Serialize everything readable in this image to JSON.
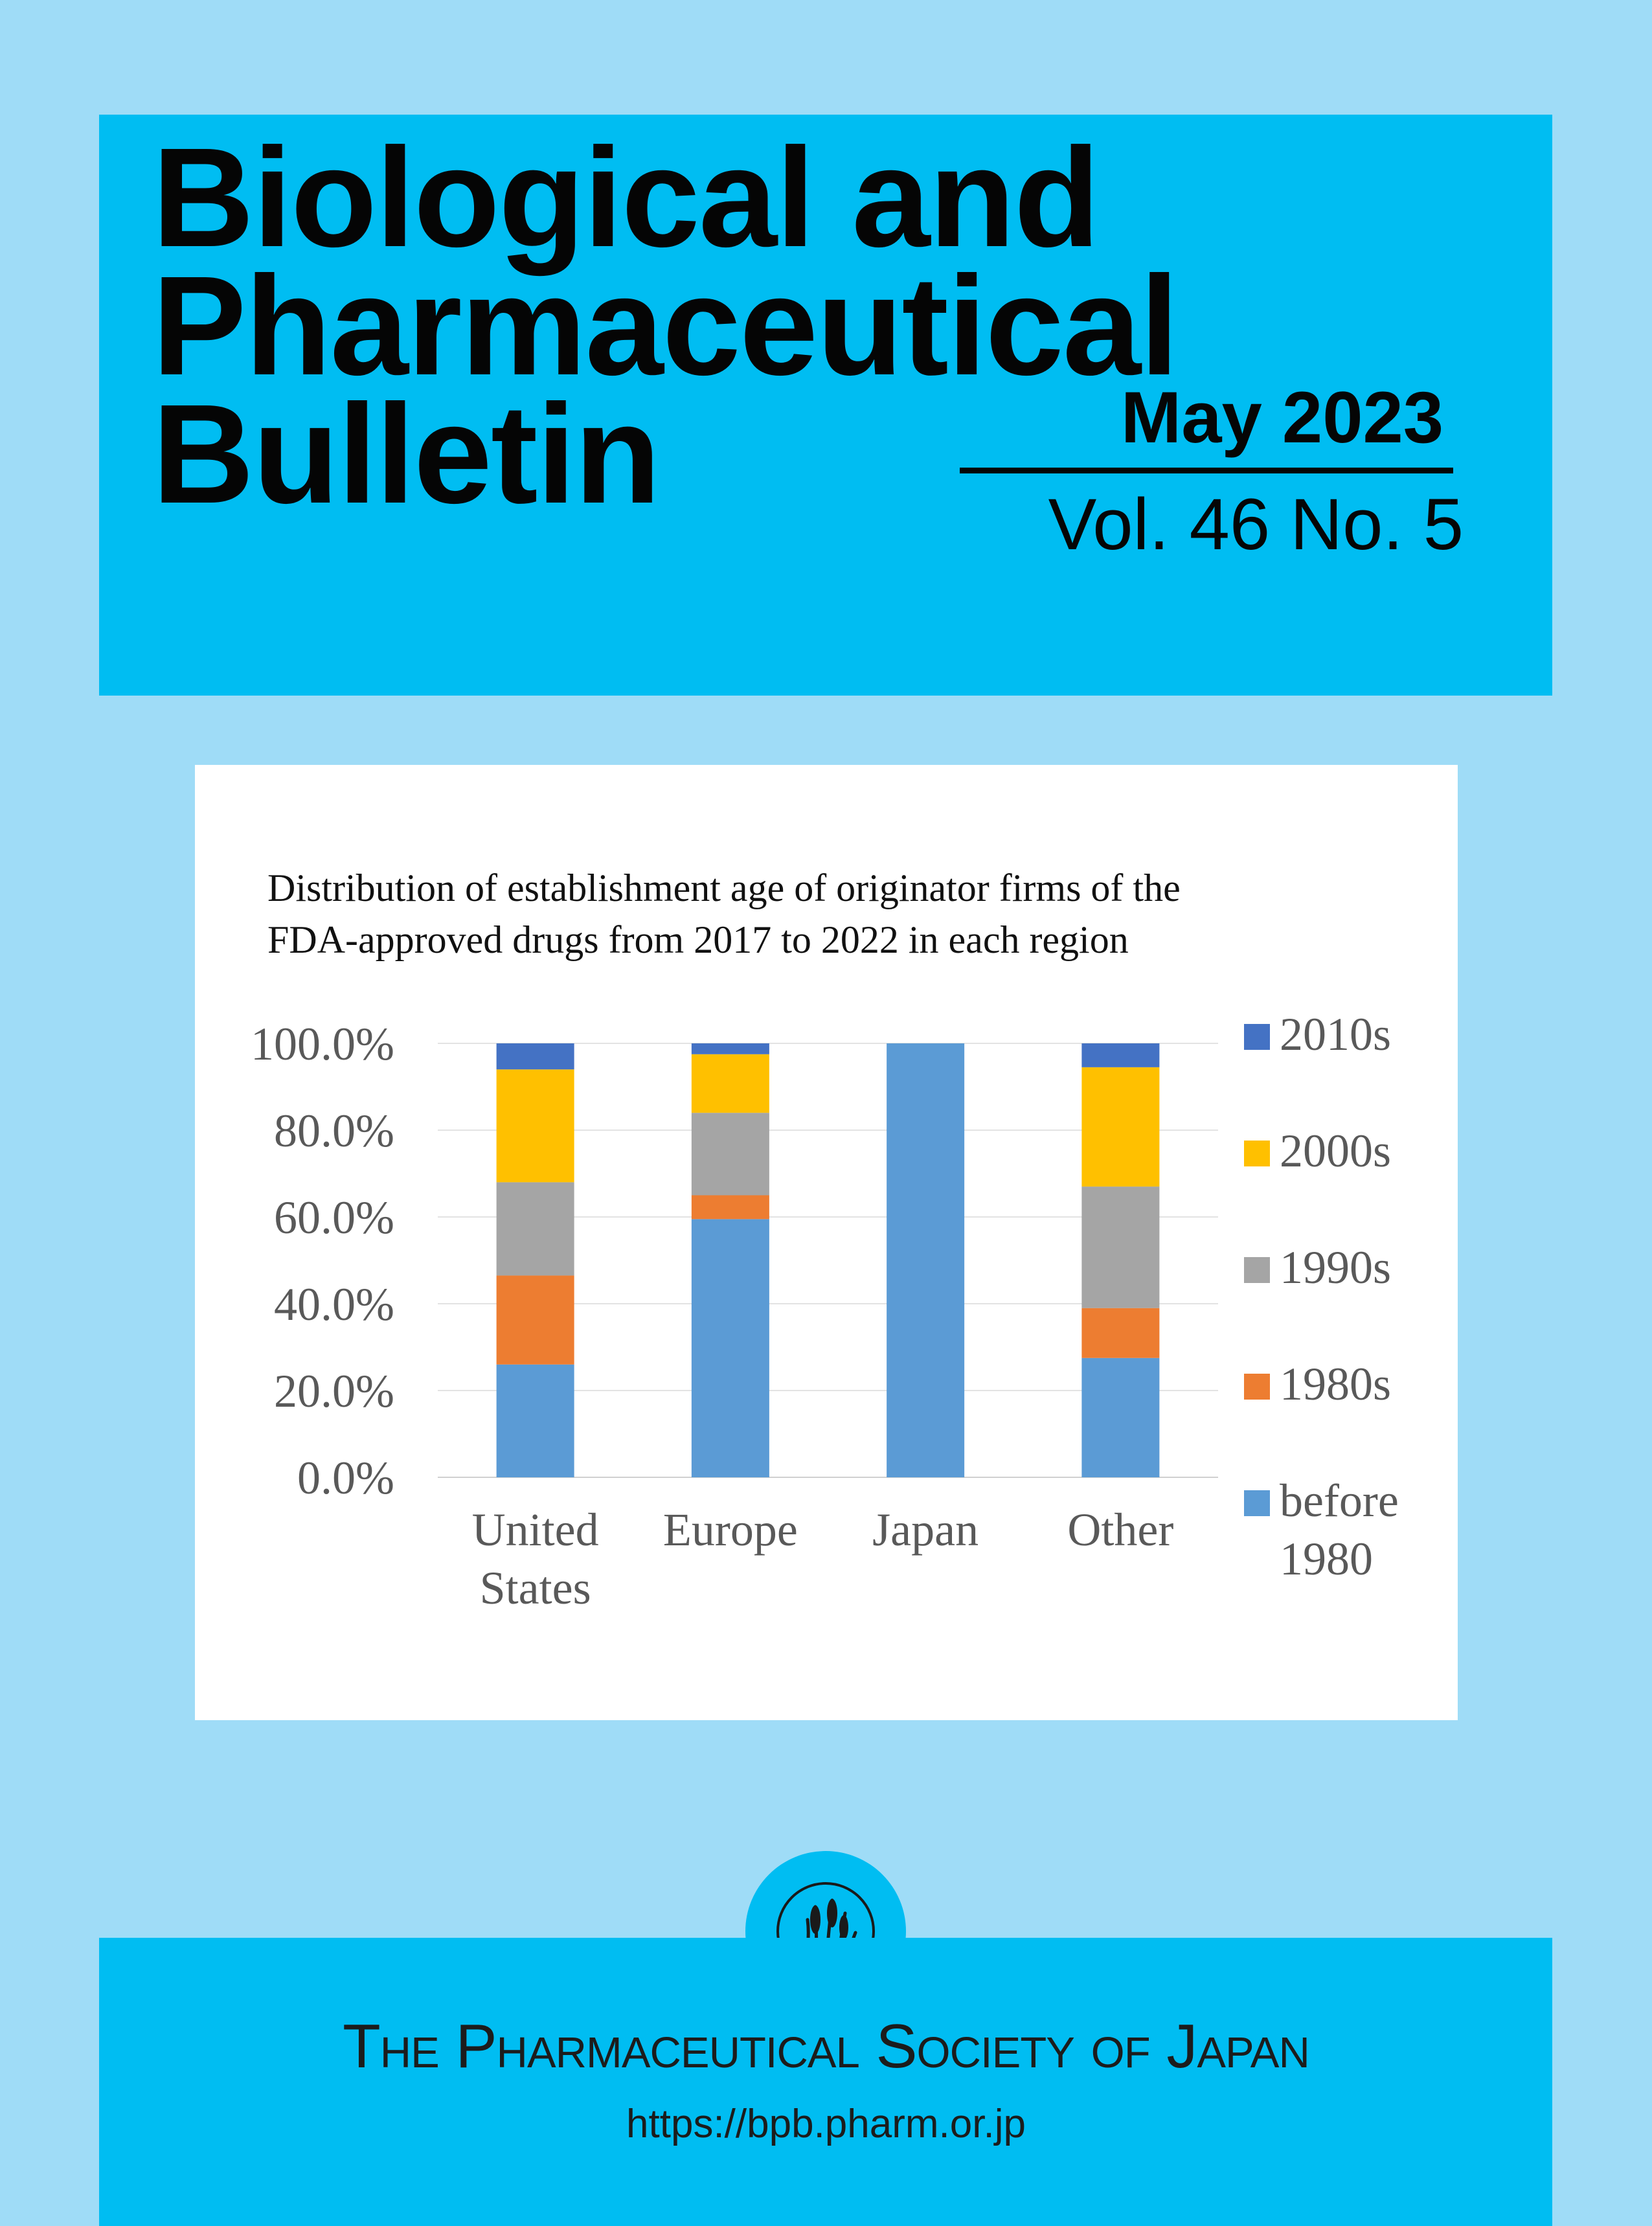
{
  "cover": {
    "title_lines": [
      "Biological and",
      "Pharmaceutical",
      "Bulletin"
    ],
    "issue_date": "May 2023",
    "volume": "Vol. 46 No. 5"
  },
  "publisher": {
    "name": "The Pharmaceutical Society of Japan",
    "url": "https://bpb.pharm.or.jp",
    "seal_icon": "reed-plant-seal-icon"
  },
  "colors": {
    "background": "#9fdcf7",
    "banner": "#00bdf2",
    "before_1980": "#5b9bd5",
    "1980s": "#ed7d31",
    "1990s": "#a5a5a5",
    "2000s": "#ffc000",
    "2010s": "#4472c4"
  },
  "chart_data": {
    "type": "bar",
    "stacked": true,
    "title_lines": [
      "Distribution of establishment age of originator firms of the",
      "FDA-approved drugs from 2017 to 2022 in each region"
    ],
    "categories": [
      [
        "United",
        "States"
      ],
      [
        "Europe"
      ],
      [
        "Japan"
      ],
      [
        "Other"
      ]
    ],
    "series": [
      {
        "name": "before 1980",
        "name_lines": [
          "before",
          "1980"
        ],
        "color": "#5b9bd5",
        "values": [
          26.0,
          59.5,
          100.0,
          27.5
        ]
      },
      {
        "name": "1980s",
        "name_lines": [
          "1980s"
        ],
        "color": "#ed7d31",
        "values": [
          20.5,
          5.5,
          0.0,
          11.5
        ]
      },
      {
        "name": "1990s",
        "name_lines": [
          "1990s"
        ],
        "color": "#a5a5a5",
        "values": [
          21.5,
          19.0,
          0.0,
          28.0
        ]
      },
      {
        "name": "2000s",
        "name_lines": [
          "2000s"
        ],
        "color": "#ffc000",
        "values": [
          26.0,
          13.5,
          0.0,
          27.5
        ]
      },
      {
        "name": "2010s",
        "name_lines": [
          "2010s"
        ],
        "color": "#4472c4",
        "values": [
          6.0,
          2.5,
          0.0,
          5.5
        ]
      }
    ],
    "yticks": [
      "0.0%",
      "20.0%",
      "40.0%",
      "60.0%",
      "80.0%",
      "100.0%"
    ],
    "ylim": [
      0,
      100
    ],
    "grid": true,
    "legend_position": "right"
  }
}
